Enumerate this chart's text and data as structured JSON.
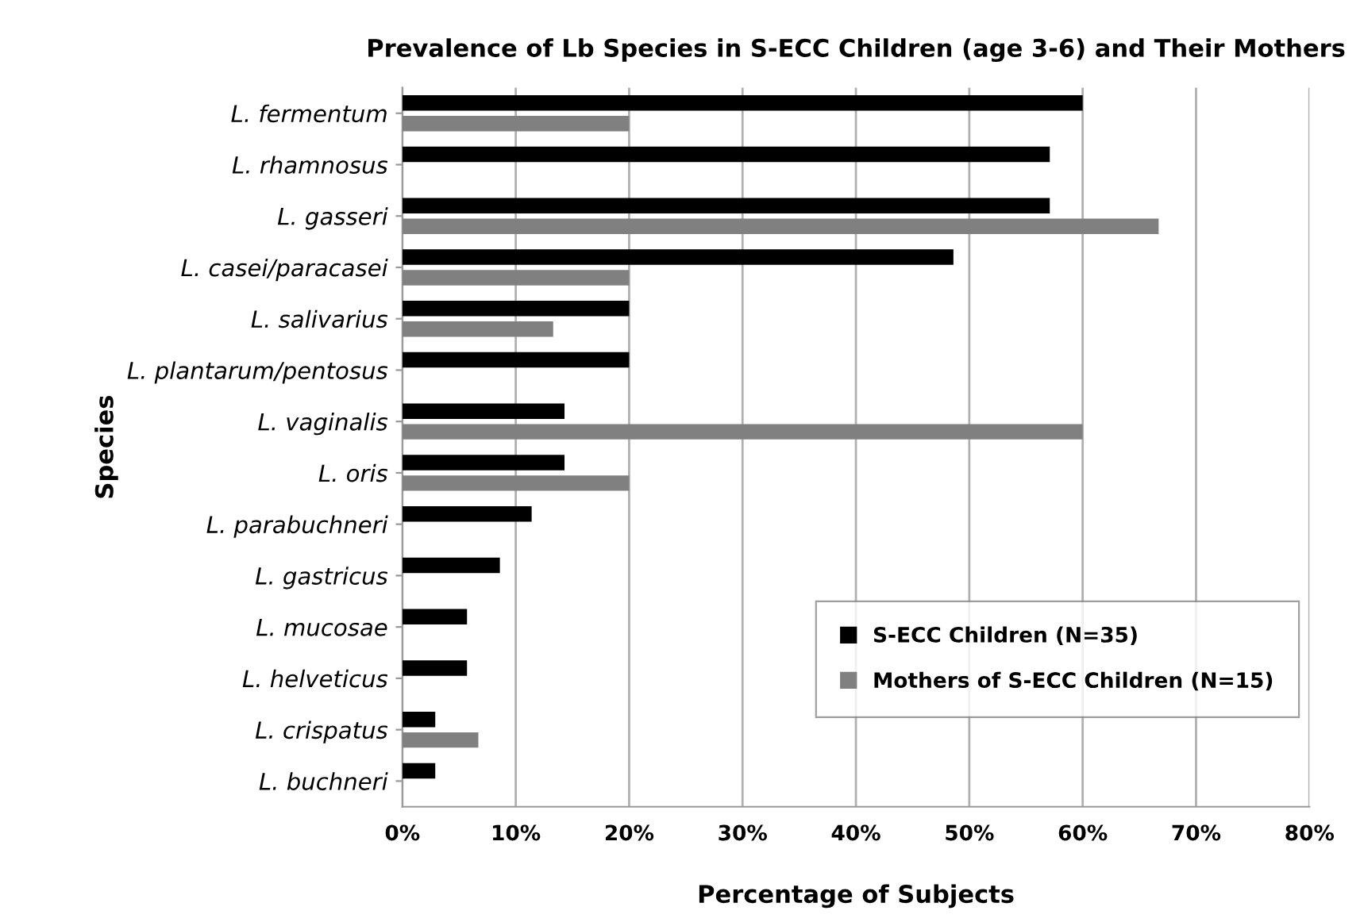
{
  "chart_data": {
    "type": "bar",
    "orientation": "horizontal",
    "title": "Prevalence of Lb Species in S-ECC Children (age 3-6) and Their Mothers",
    "xlabel": "Percentage of Subjects",
    "ylabel": "Species",
    "categories": [
      "L. fermentum",
      "L. rhamnosus",
      "L. gasseri",
      "L. casei/paracasei",
      "L. salivarius",
      "L. plantarum/pentosus",
      "L. vaginalis",
      "L. oris",
      "L. parabuchneri",
      "L. gastricus",
      "L. mucosae",
      "L. helveticus",
      "L. crispatus",
      "L. buchneri"
    ],
    "series": [
      {
        "name": "S-ECC Children (N=35)",
        "color": "#000000",
        "values": [
          60,
          57.1,
          57.1,
          48.6,
          20,
          20,
          14.3,
          14.3,
          11.4,
          8.6,
          5.7,
          5.7,
          2.9,
          2.9
        ]
      },
      {
        "name": "Mothers of S-ECC Children (N=15)",
        "color": "#808080",
        "values": [
          20,
          null,
          66.7,
          20,
          13.3,
          null,
          60,
          20,
          null,
          null,
          null,
          null,
          6.7,
          null
        ]
      }
    ],
    "xlim": [
      0,
      80
    ],
    "xticks": [
      {
        "value": 0,
        "label": "0%"
      },
      {
        "value": 10,
        "label": "10%"
      },
      {
        "value": 20,
        "label": "20%"
      },
      {
        "value": 30,
        "label": "30%"
      },
      {
        "value": 40,
        "label": "40%"
      },
      {
        "value": 50,
        "label": "50%"
      },
      {
        "value": 60,
        "label": "60%"
      },
      {
        "value": 70,
        "label": "70%"
      },
      {
        "value": 80,
        "label": "80%"
      }
    ],
    "grid": "x",
    "legend": "bottom right"
  }
}
